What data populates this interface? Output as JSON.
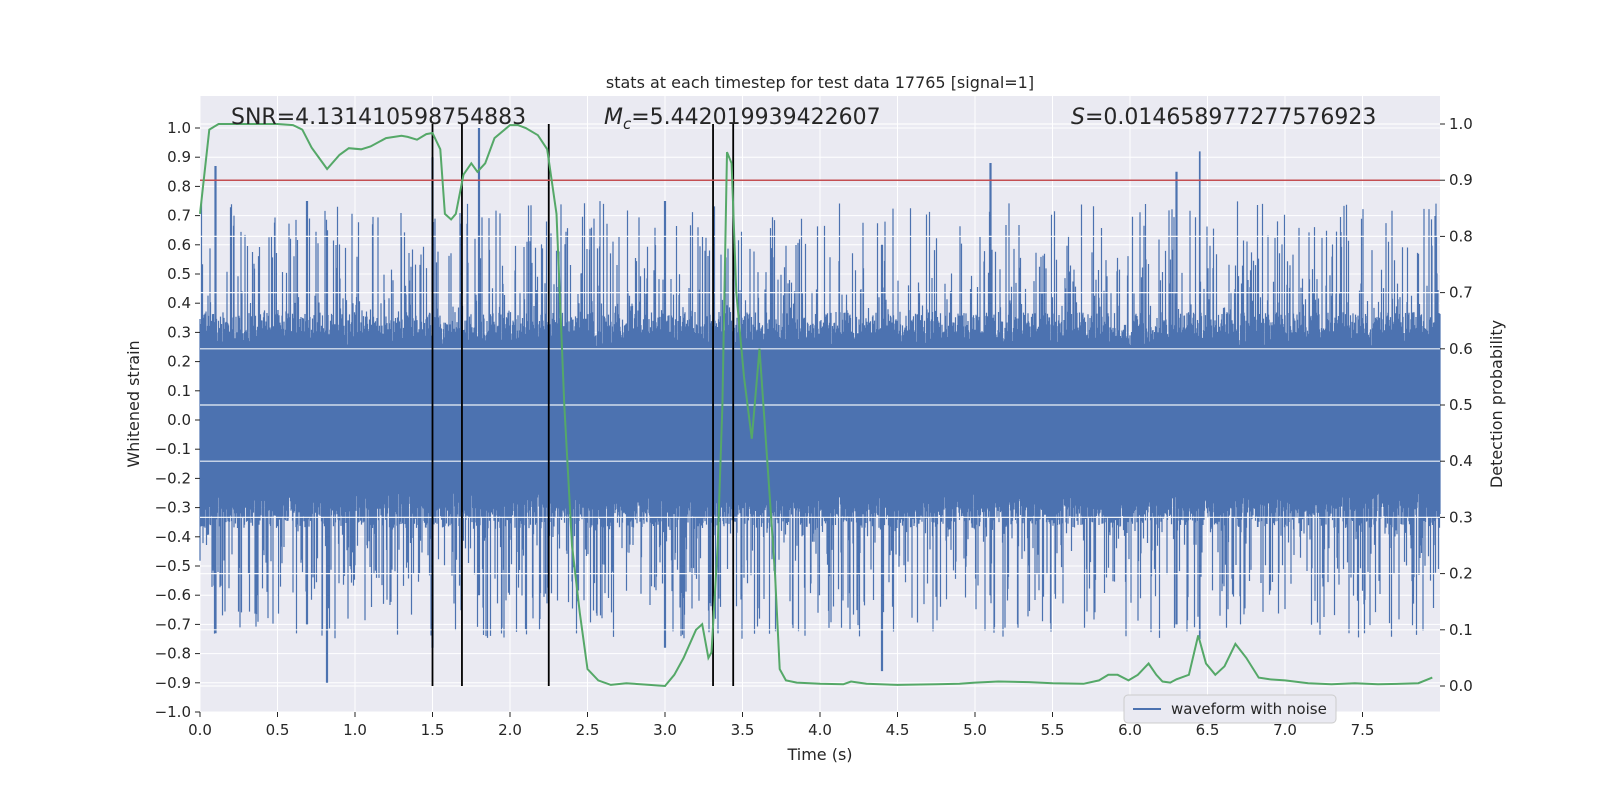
{
  "chart_data": {
    "type": "line",
    "title": "stats at each timestep for test data 17765 [signal=1]",
    "xlabel": "Time (s)",
    "ylabel_left": "Whitened strain",
    "ylabel_right": "Detection probability",
    "xlim": [
      0.0,
      8.0
    ],
    "ylim_left": [
      -1.0,
      1.0
    ],
    "ylim_right": [
      -0.05,
      1.0
    ],
    "x_ticks": [
      "0.0",
      "0.5",
      "1.0",
      "1.5",
      "2.0",
      "2.5",
      "3.0",
      "3.5",
      "4.0",
      "4.5",
      "5.0",
      "5.5",
      "6.0",
      "6.5",
      "7.0",
      "7.5"
    ],
    "y_ticks_left": [
      "1.0",
      "0.9",
      "0.8",
      "0.7",
      "0.6",
      "0.5",
      "0.4",
      "0.3",
      "0.2",
      "0.1",
      "0.0",
      "−0.1",
      "−0.2",
      "−0.3",
      "−0.4",
      "−0.5",
      "−0.6",
      "−0.7",
      "−0.8",
      "−0.9",
      "−1.0"
    ],
    "y_ticks_right": [
      "1.0",
      "0.9",
      "0.8",
      "0.7",
      "0.6",
      "0.5",
      "0.4",
      "0.3",
      "0.2",
      "0.1",
      "0.0"
    ],
    "grid": true,
    "legend_position": "lower-right",
    "annotations": {
      "snr": "SNR=4.131410598754883",
      "mc": "=5.442019939422607",
      "mc_symbol": "M",
      "mc_subscript": "c",
      "s": "=0.014658977277576923",
      "s_symbol": "S"
    },
    "threshold_line": {
      "value_right_axis": 0.9,
      "color": "#c44e52"
    },
    "vertical_markers": [
      1.5,
      1.69,
      2.25,
      3.31,
      3.44
    ],
    "series": [
      {
        "name": "waveform with noise",
        "color": "#4c72b0",
        "kind": "noise",
        "envelope_samples": [
          {
            "x": 0.1,
            "hi": 0.87,
            "lo": -0.73
          },
          {
            "x": 0.69,
            "hi": 0.75,
            "lo": -0.7
          },
          {
            "x": 0.82,
            "hi": 0.65,
            "lo": -0.9
          },
          {
            "x": 1.5,
            "hi": 0.9,
            "lo": -0.78
          },
          {
            "x": 1.8,
            "hi": 1.0,
            "lo": -0.6
          },
          {
            "x": 3.0,
            "hi": 0.75,
            "lo": -0.78
          },
          {
            "x": 4.4,
            "hi": 0.6,
            "lo": -0.86
          },
          {
            "x": 5.1,
            "hi": 0.88,
            "lo": -0.6
          },
          {
            "x": 6.3,
            "hi": 0.85,
            "lo": -0.7
          },
          {
            "x": 6.45,
            "hi": 0.92,
            "lo": -0.75
          }
        ]
      },
      {
        "name": "",
        "color": "#55a868",
        "kind": "probability",
        "axis": "right",
        "x": [
          0.0,
          0.06,
          0.12,
          0.2,
          0.3,
          0.4,
          0.5,
          0.6,
          0.66,
          0.72,
          0.82,
          0.9,
          0.96,
          1.04,
          1.1,
          1.2,
          1.3,
          1.34,
          1.4,
          1.46,
          1.5,
          1.55,
          1.58,
          1.62,
          1.65,
          1.7,
          1.75,
          1.79,
          1.84,
          1.9,
          2.0,
          2.05,
          2.1,
          2.18,
          2.24,
          2.3,
          2.35,
          2.4,
          2.45,
          2.5,
          2.57,
          2.65,
          2.75,
          2.9,
          3.0,
          3.06,
          3.12,
          3.2,
          3.24,
          3.28,
          3.3,
          3.34,
          3.37,
          3.4,
          3.43,
          3.46,
          3.51,
          3.56,
          3.61,
          3.66,
          3.71,
          3.74,
          3.78,
          3.85,
          4.0,
          4.15,
          4.2,
          4.3,
          4.5,
          4.75,
          4.9,
          5.0,
          5.15,
          5.35,
          5.5,
          5.7,
          5.8,
          5.86,
          5.92,
          5.99,
          6.05,
          6.12,
          6.17,
          6.21,
          6.26,
          6.3,
          6.38,
          6.44,
          6.49,
          6.55,
          6.61,
          6.68,
          6.75,
          6.83,
          6.9,
          7.0,
          7.15,
          7.3,
          7.45,
          7.6,
          7.75,
          7.86,
          7.95
        ],
        "y": [
          0.84,
          0.99,
          1.0,
          1.0,
          1.0,
          1.0,
          1.0,
          0.998,
          0.99,
          0.958,
          0.92,
          0.945,
          0.957,
          0.955,
          0.96,
          0.975,
          0.979,
          0.977,
          0.972,
          0.982,
          0.984,
          0.955,
          0.84,
          0.83,
          0.84,
          0.91,
          0.93,
          0.915,
          0.93,
          0.975,
          0.998,
          0.998,
          0.993,
          0.98,
          0.955,
          0.84,
          0.5,
          0.25,
          0.13,
          0.03,
          0.01,
          0.002,
          0.005,
          0.002,
          0.0,
          0.02,
          0.05,
          0.1,
          0.11,
          0.05,
          0.06,
          0.25,
          0.5,
          0.95,
          0.93,
          0.7,
          0.55,
          0.44,
          0.6,
          0.4,
          0.2,
          0.03,
          0.01,
          0.006,
          0.004,
          0.003,
          0.008,
          0.004,
          0.002,
          0.003,
          0.004,
          0.006,
          0.008,
          0.007,
          0.005,
          0.004,
          0.01,
          0.02,
          0.02,
          0.01,
          0.02,
          0.04,
          0.02,
          0.008,
          0.006,
          0.012,
          0.02,
          0.09,
          0.04,
          0.02,
          0.035,
          0.075,
          0.05,
          0.015,
          0.012,
          0.01,
          0.005,
          0.003,
          0.005,
          0.003,
          0.004,
          0.005,
          0.015
        ]
      }
    ]
  }
}
